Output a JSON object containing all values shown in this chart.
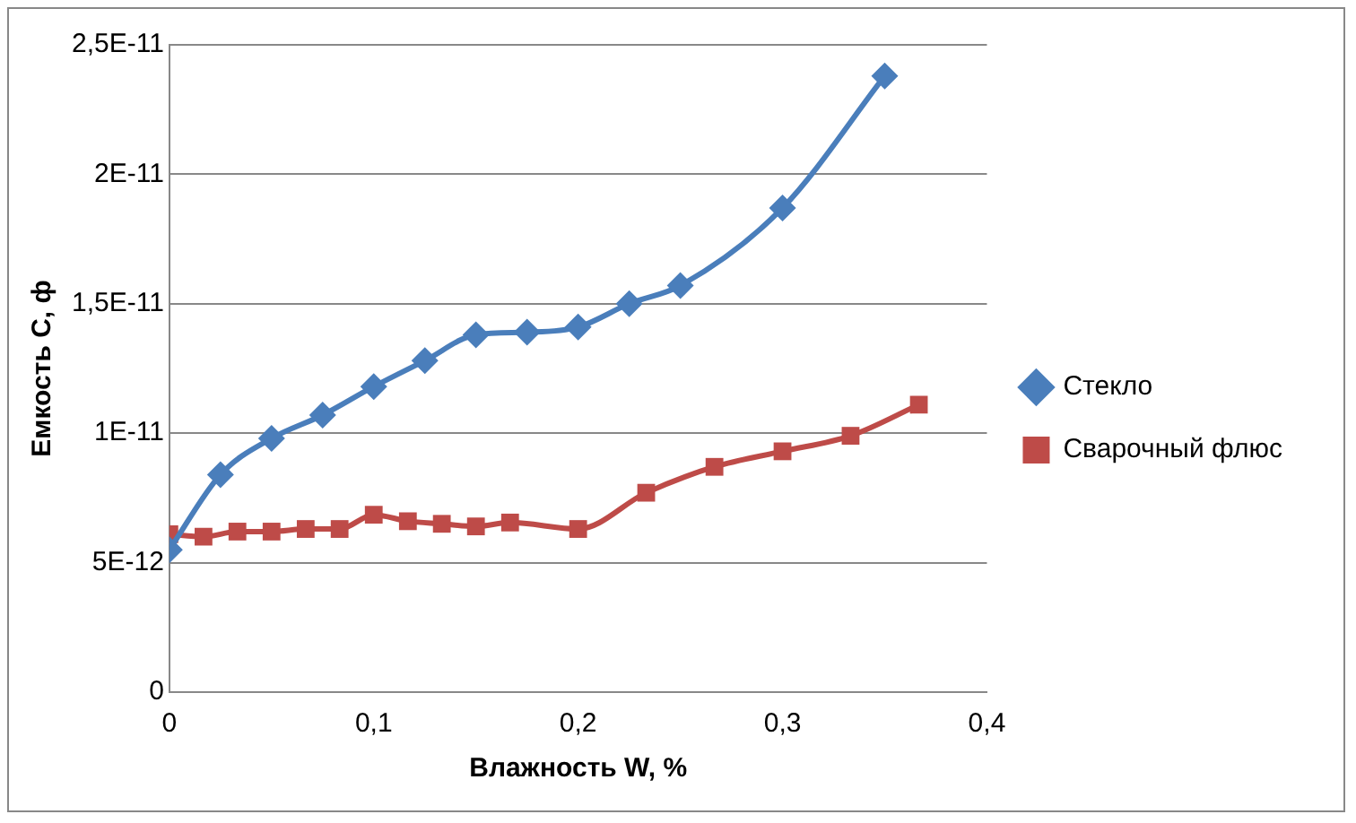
{
  "chart_data": {
    "type": "line",
    "xlabel": "Влажность W, %",
    "ylabel": "Емкость С, ф",
    "xlim": [
      0,
      0.4
    ],
    "xticks": [
      0,
      {
        "value": 0.1,
        "label": "0,1"
      },
      {
        "value": 0.2,
        "label": "0,2"
      },
      {
        "value": 0.3,
        "label": "0,3"
      },
      {
        "value": 0.4,
        "label": "0,4"
      }
    ],
    "ylim": [
      0,
      2.5e-11
    ],
    "yticks": [
      0,
      {
        "value": 5e-12,
        "label": "5E-12"
      },
      {
        "value": 1e-11,
        "label": "1E-11"
      },
      {
        "value": 1.5e-11,
        "label": "1,5E-11"
      },
      {
        "value": 2e-11,
        "label": "2E-11"
      },
      {
        "value": 2.5e-11,
        "label": "2,5E-11"
      }
    ],
    "grid": "y",
    "legend": "right",
    "series": [
      {
        "name": "Стекло",
        "color": "#4a7ebb",
        "marker": "diamond",
        "x": [
          0,
          0.025,
          0.05,
          0.075,
          0.1,
          0.125,
          0.15,
          0.175,
          0.2,
          0.225,
          0.25,
          0.3,
          0.35
        ],
        "values": [
          5.5e-12,
          8.4e-12,
          9.8e-12,
          1.07e-11,
          1.18e-11,
          1.28e-11,
          1.38e-11,
          1.39e-11,
          1.41e-11,
          1.5e-11,
          1.57e-11,
          1.87e-11,
          2.38e-11
        ]
      },
      {
        "name": "Сварочный флюс",
        "color": "#be4b48",
        "marker": "square",
        "x": [
          0,
          0.0167,
          0.0333,
          0.05,
          0.0667,
          0.0833,
          0.1,
          0.1167,
          0.1333,
          0.15,
          0.1667,
          0.2,
          0.2333,
          0.2667,
          0.3,
          0.3333,
          0.3667
        ],
        "values": [
          6.1e-12,
          6e-12,
          6.2e-12,
          6.2e-12,
          6.3e-12,
          6.3e-12,
          6.85e-12,
          6.6e-12,
          6.5e-12,
          6.4e-12,
          6.55e-12,
          6.3e-12,
          7.7e-12,
          8.7e-12,
          9.3e-12,
          9.9e-12,
          1.11e-11
        ]
      }
    ]
  }
}
